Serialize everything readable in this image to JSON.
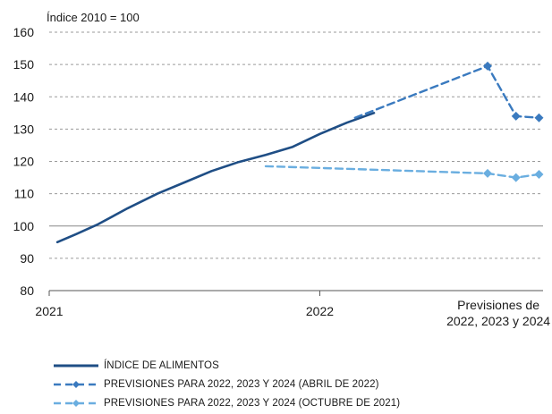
{
  "chart_data": {
    "type": "line",
    "unit_label": "Índice 2010 = 100",
    "ylim": [
      80,
      160
    ],
    "yticks": [
      80,
      90,
      100,
      110,
      120,
      130,
      140,
      150,
      160
    ],
    "xlim": [
      0,
      1.825
    ],
    "xtick_labels": [
      {
        "x": 0,
        "label": "2021"
      },
      {
        "x": 1,
        "label": "2022"
      }
    ],
    "forecast_label_lines": [
      "Previsiones de",
      "2022, 2023 y 2024"
    ],
    "grid": true,
    "legend_position": "bottom",
    "series": [
      {
        "name": "ÍNDICE DE ALIMENTOS",
        "color": "#1f4e85",
        "style": "solid",
        "markers": false,
        "points": [
          [
            0.03,
            95
          ],
          [
            0.1,
            97.5
          ],
          [
            0.18,
            100.5
          ],
          [
            0.29,
            105.5
          ],
          [
            0.4,
            110
          ],
          [
            0.5,
            113.5
          ],
          [
            0.6,
            117
          ],
          [
            0.7,
            119.8
          ],
          [
            0.8,
            122
          ],
          [
            0.9,
            124.5
          ],
          [
            1.0,
            128.5
          ],
          [
            1.1,
            132
          ],
          [
            1.2,
            135
          ]
        ]
      },
      {
        "name": "PREVISIONES PARA 2022, 2023 Y 2024 (ABRIL DE 2022)",
        "color": "#3a7abf",
        "style": "dashed",
        "markers": true,
        "points": [
          [
            1.13,
            133.5
          ],
          [
            1.62,
            149.5
          ],
          [
            1.725,
            134
          ],
          [
            1.81,
            133.5
          ]
        ],
        "marker_indices": [
          1,
          2,
          3
        ]
      },
      {
        "name": "PREVISIONES PARA 2022, 2023 Y 2024 (OCTUBRE DE 2021)",
        "color": "#6aaee0",
        "style": "dashed",
        "markers": true,
        "points": [
          [
            0.8,
            118.5
          ],
          [
            1.62,
            116.3
          ],
          [
            1.725,
            115
          ],
          [
            1.81,
            116
          ]
        ],
        "marker_indices": [
          1,
          2,
          3
        ]
      }
    ]
  }
}
